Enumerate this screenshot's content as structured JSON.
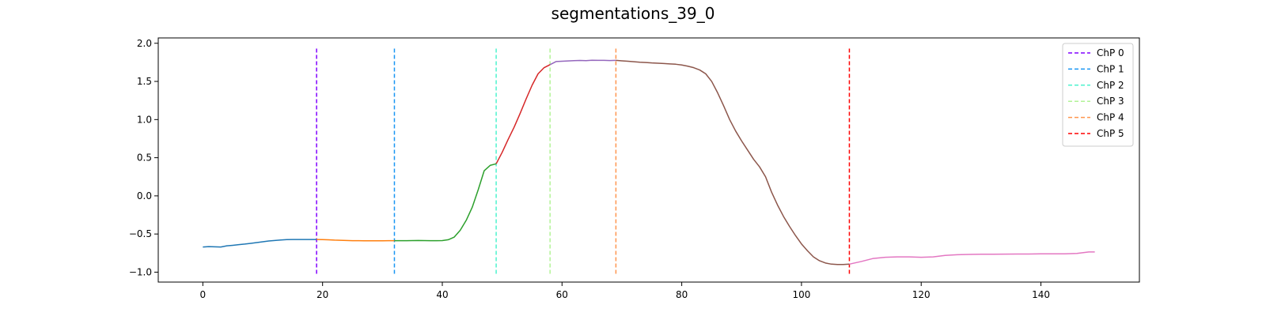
{
  "chart_data": {
    "type": "line",
    "title": "segmentations_39_0",
    "xlabel": "",
    "ylabel": "",
    "xlim": [
      -7.45,
      156.45
    ],
    "ylim": [
      -1.13,
      2.07
    ],
    "xticks": [
      0,
      20,
      40,
      60,
      80,
      100,
      120,
      140
    ],
    "yticks": [
      -1.0,
      -0.5,
      0.0,
      0.5,
      1.0,
      1.5,
      2.0
    ],
    "ytick_labels": [
      "−1.0",
      "−0.5",
      "0.0",
      "0.5",
      "1.0",
      "1.5",
      "2.0"
    ],
    "grid": false,
    "legend_position": "top-right",
    "changepoint_ymin": -1.03,
    "changepoint_ymax": 1.93,
    "changepoints": [
      {
        "name": "ChP 0",
        "x": 19,
        "color": "#8000ff"
      },
      {
        "name": "ChP 1",
        "x": 32,
        "color": "#1996f3"
      },
      {
        "name": "ChP 2",
        "x": 49,
        "color": "#4df3ce"
      },
      {
        "name": "ChP 3",
        "x": 58,
        "color": "#b2f396"
      },
      {
        "name": "ChP 4",
        "x": 69,
        "color": "#ff964f"
      },
      {
        "name": "ChP 5",
        "x": 108,
        "color": "#ff0000"
      }
    ],
    "segments": [
      {
        "color": "#1f77b4",
        "x": [
          0,
          1,
          2,
          3,
          4,
          5,
          6,
          7,
          8,
          9,
          10,
          11,
          12,
          13,
          14,
          15,
          16,
          17,
          18,
          19
        ],
        "y": [
          -0.67,
          -0.665,
          -0.668,
          -0.67,
          -0.655,
          -0.648,
          -0.64,
          -0.632,
          -0.622,
          -0.612,
          -0.602,
          -0.592,
          -0.585,
          -0.578,
          -0.574,
          -0.572,
          -0.572,
          -0.572,
          -0.572,
          -0.572
        ]
      },
      {
        "color": "#ff7f0e",
        "x": [
          19,
          20,
          21,
          22,
          23,
          24,
          25,
          26,
          27,
          28,
          29,
          30,
          31,
          32
        ],
        "y": [
          -0.572,
          -0.574,
          -0.576,
          -0.58,
          -0.582,
          -0.585,
          -0.587,
          -0.588,
          -0.589,
          -0.589,
          -0.589,
          -0.589,
          -0.588,
          -0.588
        ]
      },
      {
        "color": "#2ca02c",
        "x": [
          32,
          33,
          34,
          35,
          36,
          37,
          38,
          39,
          40,
          41,
          42,
          43,
          44,
          45,
          46,
          47,
          48,
          49
        ],
        "y": [
          -0.588,
          -0.588,
          -0.587,
          -0.586,
          -0.585,
          -0.586,
          -0.587,
          -0.587,
          -0.586,
          -0.575,
          -0.54,
          -0.45,
          -0.32,
          -0.15,
          0.08,
          0.33,
          0.4,
          0.42
        ]
      },
      {
        "color": "#d62728",
        "x": [
          49,
          50,
          51,
          52,
          53,
          54,
          55,
          56,
          57,
          58
        ],
        "y": [
          0.42,
          0.57,
          0.74,
          0.9,
          1.08,
          1.27,
          1.45,
          1.6,
          1.68,
          1.72
        ]
      },
      {
        "color": "#9467bd",
        "x": [
          58,
          59,
          60,
          61,
          62,
          63,
          64,
          65,
          66,
          67,
          68,
          69
        ],
        "y": [
          1.72,
          1.76,
          1.765,
          1.768,
          1.772,
          1.775,
          1.772,
          1.777,
          1.776,
          1.776,
          1.774,
          1.776
        ]
      },
      {
        "color": "#8c564b",
        "x": [
          69,
          70,
          71,
          72,
          73,
          74,
          75,
          76,
          77,
          78,
          79,
          80,
          81,
          82,
          83,
          84,
          85,
          86,
          87,
          88,
          89,
          90,
          91,
          92,
          93,
          94,
          95,
          96,
          97,
          98,
          99,
          100,
          101,
          102,
          103,
          104,
          105,
          106,
          107,
          108
        ],
        "y": [
          1.776,
          1.77,
          1.765,
          1.758,
          1.752,
          1.748,
          1.742,
          1.738,
          1.735,
          1.73,
          1.725,
          1.715,
          1.7,
          1.68,
          1.65,
          1.6,
          1.5,
          1.35,
          1.18,
          1.0,
          0.85,
          0.72,
          0.6,
          0.48,
          0.38,
          0.25,
          0.05,
          -0.12,
          -0.27,
          -0.4,
          -0.52,
          -0.63,
          -0.72,
          -0.8,
          -0.85,
          -0.88,
          -0.895,
          -0.9,
          -0.9,
          -0.895
        ]
      },
      {
        "color": "#e377c2",
        "x": [
          108,
          110,
          112,
          114,
          116,
          118,
          120,
          122,
          124,
          126,
          128,
          130,
          132,
          134,
          136,
          138,
          140,
          142,
          144,
          146,
          148,
          149
        ],
        "y": [
          -0.895,
          -0.86,
          -0.82,
          -0.805,
          -0.8,
          -0.8,
          -0.805,
          -0.8,
          -0.78,
          -0.772,
          -0.768,
          -0.765,
          -0.765,
          -0.764,
          -0.762,
          -0.762,
          -0.76,
          -0.76,
          -0.76,
          -0.755,
          -0.735,
          -0.735
        ]
      }
    ]
  }
}
